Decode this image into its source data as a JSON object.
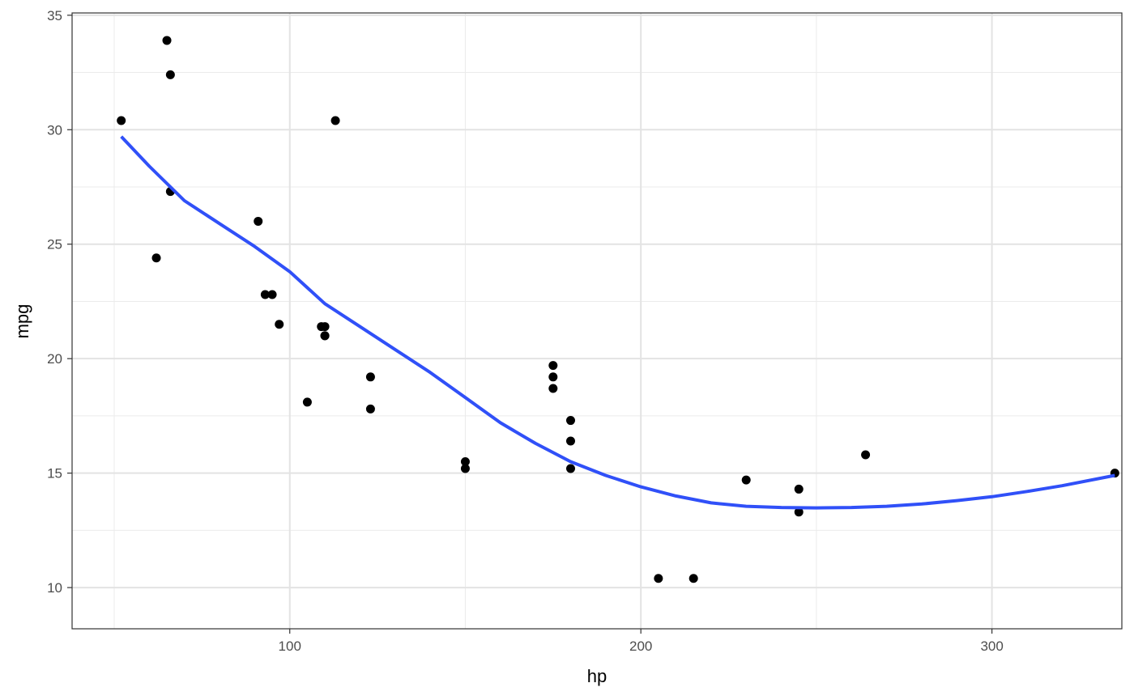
{
  "chart_data": {
    "type": "scatter",
    "title": "",
    "xlabel": "hp",
    "ylabel": "mpg",
    "xlim": [
      38,
      337
    ],
    "ylim": [
      8.2,
      35.1
    ],
    "x_ticks": [
      100,
      200,
      300
    ],
    "x_tick_labels": [
      "100",
      "200",
      "300"
    ],
    "y_ticks": [
      10,
      15,
      20,
      25,
      30,
      35
    ],
    "y_tick_labels": [
      "10",
      "15",
      "20",
      "25",
      "30",
      "35"
    ],
    "x_minor_ticks": [
      50,
      150,
      250
    ],
    "y_minor_ticks": [
      12.5,
      17.5,
      22.5,
      27.5,
      32.5
    ],
    "grid": true,
    "legend": "none",
    "points": [
      {
        "x": 110,
        "y": 21.0
      },
      {
        "x": 110,
        "y": 21.0
      },
      {
        "x": 93,
        "y": 22.8
      },
      {
        "x": 110,
        "y": 21.4
      },
      {
        "x": 175,
        "y": 18.7
      },
      {
        "x": 105,
        "y": 18.1
      },
      {
        "x": 245,
        "y": 14.3
      },
      {
        "x": 62,
        "y": 24.4
      },
      {
        "x": 95,
        "y": 22.8
      },
      {
        "x": 123,
        "y": 19.2
      },
      {
        "x": 123,
        "y": 17.8
      },
      {
        "x": 180,
        "y": 16.4
      },
      {
        "x": 180,
        "y": 17.3
      },
      {
        "x": 180,
        "y": 15.2
      },
      {
        "x": 205,
        "y": 10.4
      },
      {
        "x": 215,
        "y": 10.4
      },
      {
        "x": 230,
        "y": 14.7
      },
      {
        "x": 66,
        "y": 32.4
      },
      {
        "x": 52,
        "y": 30.4
      },
      {
        "x": 65,
        "y": 33.9
      },
      {
        "x": 97,
        "y": 21.5
      },
      {
        "x": 150,
        "y": 15.5
      },
      {
        "x": 150,
        "y": 15.2
      },
      {
        "x": 245,
        "y": 13.3
      },
      {
        "x": 175,
        "y": 19.2
      },
      {
        "x": 66,
        "y": 27.3
      },
      {
        "x": 91,
        "y": 26.0
      },
      {
        "x": 113,
        "y": 30.4
      },
      {
        "x": 264,
        "y": 15.8
      },
      {
        "x": 175,
        "y": 19.7
      },
      {
        "x": 335,
        "y": 15.0
      },
      {
        "x": 109,
        "y": 21.4
      }
    ],
    "smooth_line": {
      "color": "#3050f8",
      "points": [
        [
          52,
          29.7
        ],
        [
          60,
          28.4
        ],
        [
          70,
          26.9
        ],
        [
          80,
          25.9
        ],
        [
          90,
          24.9
        ],
        [
          100,
          23.8
        ],
        [
          110,
          22.4
        ],
        [
          120,
          21.4
        ],
        [
          130,
          20.4
        ],
        [
          140,
          19.4
        ],
        [
          150,
          18.3
        ],
        [
          160,
          17.2
        ],
        [
          170,
          16.3
        ],
        [
          180,
          15.5
        ],
        [
          190,
          14.9
        ],
        [
          200,
          14.4
        ],
        [
          210,
          14.0
        ],
        [
          220,
          13.7
        ],
        [
          230,
          13.55
        ],
        [
          240,
          13.5
        ],
        [
          250,
          13.48
        ],
        [
          260,
          13.5
        ],
        [
          270,
          13.55
        ],
        [
          280,
          13.65
        ],
        [
          290,
          13.8
        ],
        [
          300,
          13.97
        ],
        [
          310,
          14.2
        ],
        [
          320,
          14.45
        ],
        [
          335,
          14.9
        ]
      ]
    },
    "point_color": "#000000"
  }
}
